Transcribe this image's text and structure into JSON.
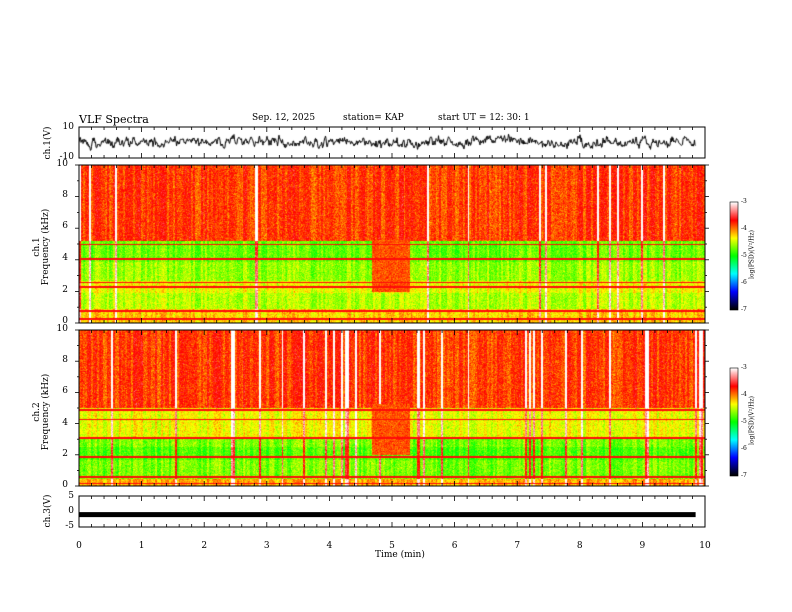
{
  "header": {
    "title": "VLF Spectra",
    "date": "Sep. 12, 2025",
    "station": "station= KAP",
    "start_ut": "start  UT =   12: 30: 1"
  },
  "colors": {
    "waveform": "#000000",
    "colormap": [
      "#000000",
      "#0000ff",
      "#00ffff",
      "#00ff00",
      "#ffff00",
      "#ff0000",
      "#ffffff"
    ]
  },
  "chart_data": [
    {
      "type": "line",
      "name": "ch1-waveform",
      "ylabel": "ch.1(V)",
      "ylim": [
        -10,
        10
      ],
      "yticks": [
        "10",
        "-10"
      ],
      "xlim": [
        0,
        10
      ],
      "mean": 0
    },
    {
      "type": "heatmap",
      "name": "ch1-spectrogram",
      "ylabel": "ch.1\nFrequency (kHz)",
      "ylabel_ch": "ch.1",
      "ylabel_freq": "Frequency (kHz)",
      "ylim": [
        0,
        10
      ],
      "yticks": [
        "0",
        "2",
        "4",
        "6",
        "8",
        "10"
      ],
      "xlim": [
        0,
        10
      ],
      "colorbar": {
        "label": "log(PSD)(V²/Hz)",
        "range": [
          -7,
          -3
        ],
        "ticks": [
          "-3",
          "-4",
          "-5",
          "-6",
          "-7"
        ]
      }
    },
    {
      "type": "heatmap",
      "name": "ch2-spectrogram",
      "ylabel": "ch.2\nFrequency (kHz)",
      "ylabel_ch": "ch.2",
      "ylabel_freq": "Frequency (kHz)",
      "ylim": [
        0,
        10
      ],
      "yticks": [
        "0",
        "2",
        "4",
        "6",
        "8",
        "10"
      ],
      "xlim": [
        0,
        10
      ],
      "colorbar": {
        "label": "log(PSD)(V²/Hz)",
        "range": [
          -7,
          -3
        ],
        "ticks": [
          "-3",
          "-4",
          "-5",
          "-6",
          "-7"
        ]
      }
    },
    {
      "type": "line",
      "name": "ch3-waveform",
      "ylabel": "ch.3(V)",
      "ylim": [
        -5,
        5
      ],
      "yticks": [
        "5",
        "0",
        "-5"
      ],
      "xlim": [
        0,
        10
      ],
      "level": -1
    }
  ],
  "xaxis": {
    "label": "Time (min)",
    "ticks": [
      "0",
      "1",
      "2",
      "3",
      "4",
      "5",
      "6",
      "7",
      "8",
      "9",
      "10"
    ],
    "range": [
      0,
      10
    ]
  }
}
